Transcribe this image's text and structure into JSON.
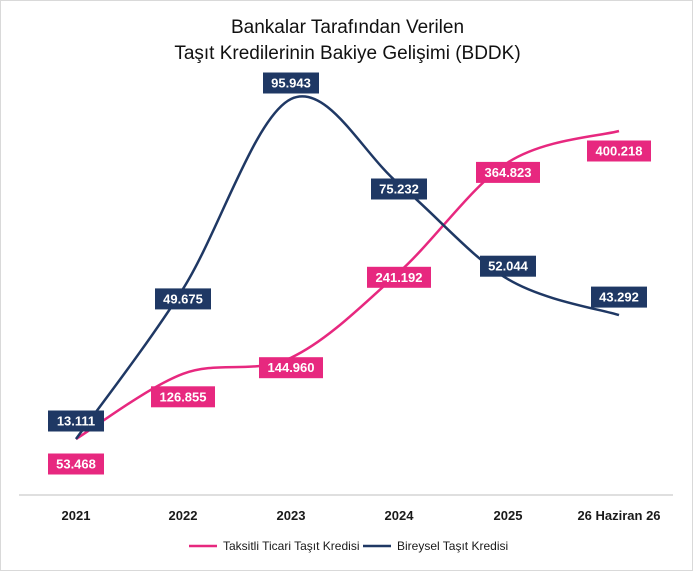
{
  "chart_data": {
    "type": "line",
    "title": "Bankalar Tarafından Verilen",
    "subtitle": "Taşıt Kredilerinin Bakiye Gelişimi (BDDK)",
    "categories": [
      "2021",
      "2022",
      "2023",
      "2024",
      "2025",
      "26 Haziran 26"
    ],
    "series": [
      {
        "name": "Taksitli Ticari Taşıt Kredisi",
        "color": "#e7287f",
        "values": [
          53468,
          126855,
          144960,
          241192,
          364823,
          400218
        ],
        "labels": [
          "53.468",
          "126.855",
          "144.960",
          "241.192",
          "364.823",
          "400.218"
        ]
      },
      {
        "name": "Bireysel Taşıt Kredisi",
        "color": "#1f3864",
        "values": [
          13111,
          49675,
          95943,
          75232,
          52044,
          43292
        ],
        "labels": [
          "13.111",
          "49.675",
          "95.943",
          "75.232",
          "52.044",
          "43.292"
        ]
      }
    ],
    "grid": false,
    "legend": "bottom",
    "smooth": true
  }
}
